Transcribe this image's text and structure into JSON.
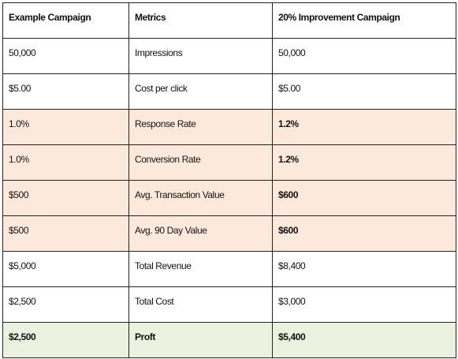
{
  "table": {
    "header": [
      "Example Campaign",
      "Metrics",
      "20% Improvement Campaign"
    ],
    "rows": [
      [
        "50,000",
        "Impressions",
        "50,000"
      ],
      [
        "$5.00",
        "Cost per click",
        "$5.00"
      ],
      [
        "1.0%",
        "Response Rate",
        "1.2%"
      ],
      [
        "1.0%",
        "Conversion Rate",
        "1.2%"
      ],
      [
        "$500",
        "Avg. Transaction Value",
        "$600"
      ],
      [
        "$500",
        "Avg. 90 Day Value",
        "$600"
      ],
      [
        "$5,000",
        "Total Revenue",
        "$8,400"
      ],
      [
        "$2,500",
        "Total Cost",
        "$3,000"
      ],
      [
        "$2,500",
        "Proft",
        "$5,400"
      ]
    ]
  }
}
